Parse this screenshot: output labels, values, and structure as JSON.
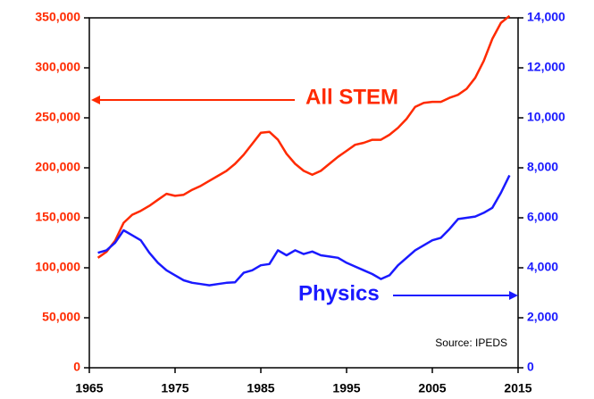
{
  "chart_data": {
    "type": "line",
    "x": [
      1966,
      1967,
      1968,
      1969,
      1970,
      1971,
      1972,
      1973,
      1974,
      1975,
      1976,
      1977,
      1978,
      1979,
      1980,
      1981,
      1982,
      1983,
      1984,
      1985,
      1986,
      1987,
      1988,
      1989,
      1990,
      1991,
      1992,
      1993,
      1994,
      1995,
      1996,
      1997,
      1998,
      1999,
      2000,
      2001,
      2002,
      2003,
      2004,
      2005,
      2006,
      2007,
      2008,
      2009,
      2010,
      2011,
      2012,
      2013,
      2014
    ],
    "series": [
      {
        "name": "All STEM",
        "color": "#ff2a00",
        "axis": "y",
        "values": [
          110000,
          116000,
          127000,
          145000,
          153000,
          157000,
          162000,
          168000,
          174000,
          172000,
          173000,
          178000,
          182000,
          187000,
          192000,
          197000,
          204000,
          213000,
          224000,
          235000,
          236000,
          228000,
          214000,
          204000,
          197000,
          193000,
          197000,
          204000,
          211000,
          217000,
          223000,
          225000,
          228000,
          228000,
          233000,
          240000,
          249000,
          261000,
          265000,
          266000,
          266000,
          270000,
          273000,
          279000,
          290000,
          307000,
          329000,
          345000,
          352000
        ]
      },
      {
        "name": "Physics",
        "color": "#1a1aff",
        "axis": "y2",
        "values": [
          4600,
          4700,
          5000,
          5500,
          5300,
          5100,
          4600,
          4200,
          3900,
          3700,
          3500,
          3400,
          3350,
          3300,
          3350,
          3400,
          3420,
          3800,
          3900,
          4100,
          4150,
          4700,
          4500,
          4700,
          4550,
          4650,
          4500,
          4450,
          4400,
          4200,
          4050,
          3900,
          3750,
          3550,
          3700,
          4100,
          4400,
          4700,
          4900,
          5100,
          5200,
          5550,
          5950,
          6000,
          6050,
          6200,
          6400,
          7000,
          7700
        ]
      }
    ],
    "xlim": [
      1965,
      2015
    ],
    "xticks": [
      1965,
      1975,
      1985,
      1995,
      2005,
      2015
    ],
    "ylim": [
      0,
      350000
    ],
    "yticks": [
      0,
      {
        "value": 50000,
        "label": "50,000"
      },
      {
        "value": 100000,
        "label": "100,000"
      },
      {
        "value": 150000,
        "label": "150,000"
      },
      {
        "value": 200000,
        "label": "200,000"
      },
      {
        "value": 250000,
        "label": "250,000"
      },
      {
        "value": 300000,
        "label": "300,000"
      },
      {
        "value": 350000,
        "label": "350,000"
      }
    ],
    "y2lim": [
      0,
      14000
    ],
    "y2ticks": [
      0,
      {
        "value": 2000,
        "label": "2,000"
      },
      {
        "value": 4000,
        "label": "4,000"
      },
      {
        "value": 6000,
        "label": "6,000"
      },
      {
        "value": 8000,
        "label": "8,000"
      },
      {
        "value": 10000,
        "label": "10,000"
      },
      {
        "value": 12000,
        "label": "12,000"
      },
      {
        "value": 14000,
        "label": "14,000"
      }
    ],
    "annotations": [
      "All STEM",
      "Physics",
      "Source: IPEDS"
    ]
  }
}
